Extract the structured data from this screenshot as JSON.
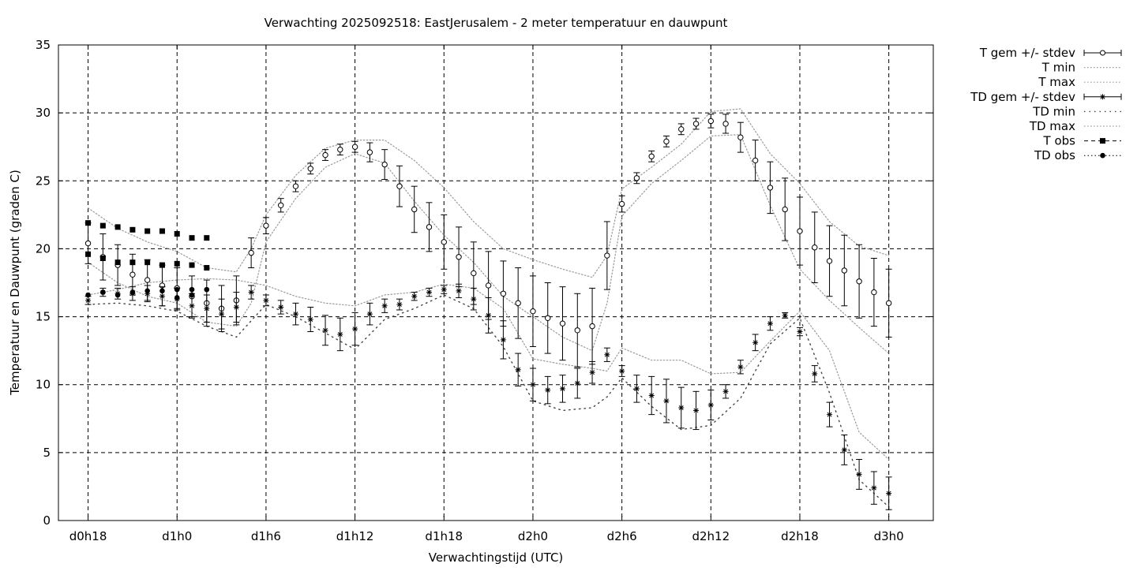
{
  "chart_data": {
    "type": "line",
    "title": "Verwachting 2025092518: EastJerusalem - 2 meter temperatuur en dauwpunt",
    "xlabel": "Verwachtingstijd (UTC)",
    "ylabel": "Temperatuur en Dauwpunt (graden C)",
    "x_unit": "hours from d0h0",
    "xlim": [
      16,
      75
    ],
    "ylim": [
      0,
      35
    ],
    "grid": true,
    "legend_position": "outside-top-right",
    "x_ticks": [
      {
        "x": 18,
        "label": "d0h18"
      },
      {
        "x": 24,
        "label": "d1h0"
      },
      {
        "x": 30,
        "label": "d1h6"
      },
      {
        "x": 36,
        "label": "d1h12"
      },
      {
        "x": 42,
        "label": "d1h18"
      },
      {
        "x": 48,
        "label": "d2h0"
      },
      {
        "x": 54,
        "label": "d2h6"
      },
      {
        "x": 60,
        "label": "d2h12"
      },
      {
        "x": 66,
        "label": "d2h18"
      },
      {
        "x": 72,
        "label": "d3h0"
      }
    ],
    "y_ticks": [
      0,
      5,
      10,
      15,
      20,
      25,
      30,
      35
    ],
    "series": [
      {
        "name": "T gem +/- stdev",
        "style": "circle-errorbar",
        "x": [
          18,
          19,
          20,
          21,
          22,
          23,
          24,
          25,
          26,
          27,
          28,
          29,
          30,
          31,
          32,
          33,
          34,
          35,
          36,
          37,
          38,
          39,
          40,
          41,
          42,
          43,
          44,
          45,
          46,
          47,
          48,
          49,
          50,
          51,
          52,
          53,
          54,
          55,
          56,
          57,
          58,
          59,
          60,
          61,
          62,
          63,
          64,
          65,
          66,
          67,
          68,
          69,
          70,
          71,
          72
        ],
        "mean": [
          20.4,
          19.4,
          18.8,
          18.1,
          17.7,
          17.3,
          17.1,
          16.5,
          16.0,
          15.6,
          16.2,
          19.7,
          21.7,
          23.2,
          24.6,
          25.9,
          26.9,
          27.3,
          27.5,
          27.1,
          26.2,
          24.6,
          22.9,
          21.6,
          20.5,
          19.4,
          18.2,
          17.3,
          16.7,
          16.0,
          15.4,
          14.9,
          14.5,
          14.0,
          14.3,
          19.5,
          23.3,
          25.2,
          26.8,
          27.9,
          28.8,
          29.2,
          29.4,
          29.2,
          28.2,
          26.5,
          24.5,
          22.9,
          21.3,
          20.1,
          19.1,
          18.4,
          17.6,
          16.8,
          16.0
        ],
        "stdev": [
          1.5,
          1.7,
          1.5,
          1.5,
          1.5,
          1.5,
          1.5,
          1.5,
          1.7,
          1.7,
          1.8,
          1.1,
          0.6,
          0.5,
          0.4,
          0.4,
          0.4,
          0.4,
          0.4,
          0.7,
          1.1,
          1.5,
          1.7,
          1.8,
          2.0,
          2.2,
          2.3,
          2.5,
          2.4,
          2.6,
          2.6,
          2.6,
          2.7,
          2.7,
          2.8,
          2.5,
          0.6,
          0.4,
          0.4,
          0.4,
          0.4,
          0.4,
          0.5,
          0.7,
          1.1,
          1.5,
          1.9,
          2.3,
          2.5,
          2.6,
          2.6,
          2.6,
          2.7,
          2.5,
          2.5
        ]
      },
      {
        "name": "T min",
        "style": "dotted",
        "x": [
          18,
          20,
          22,
          24,
          26,
          28,
          29,
          30,
          32,
          34,
          36,
          38,
          40,
          42,
          44,
          46,
          48,
          50,
          52,
          53,
          54,
          56,
          58,
          60,
          62,
          64,
          66,
          68,
          70,
          72
        ],
        "y": [
          19.0,
          17.5,
          16.5,
          16.0,
          14.6,
          14.3,
          16.0,
          20.5,
          23.7,
          26.0,
          27.0,
          26.3,
          23.5,
          21.0,
          19.0,
          16.5,
          15.0,
          13.5,
          12.5,
          16.0,
          22.4,
          24.8,
          26.5,
          28.3,
          28.4,
          23.2,
          18.5,
          16.2,
          14.2,
          12.3
        ]
      },
      {
        "name": "T max",
        "style": "dotted",
        "x": [
          18,
          20,
          22,
          24,
          26,
          28,
          29,
          30,
          32,
          34,
          36,
          38,
          40,
          42,
          44,
          46,
          48,
          50,
          52,
          53,
          54,
          56,
          58,
          60,
          62,
          64,
          66,
          68,
          70,
          72
        ],
        "y": [
          23.0,
          21.5,
          20.5,
          19.8,
          18.6,
          18.3,
          20.0,
          22.5,
          25.4,
          27.4,
          28.0,
          28.0,
          26.5,
          24.5,
          22.0,
          20.0,
          19.2,
          18.5,
          17.9,
          19.5,
          24.4,
          26.0,
          27.7,
          30.1,
          30.3,
          27.0,
          24.8,
          22.0,
          20.2,
          19.5
        ]
      },
      {
        "name": "TD gem +/- stdev",
        "style": "star-errorbar",
        "x": [
          18,
          19,
          20,
          21,
          22,
          23,
          24,
          25,
          26,
          27,
          28,
          29,
          30,
          31,
          32,
          33,
          34,
          35,
          36,
          37,
          38,
          39,
          40,
          41,
          42,
          43,
          44,
          45,
          46,
          47,
          48,
          49,
          50,
          51,
          52,
          53,
          54,
          55,
          56,
          57,
          58,
          59,
          60,
          61,
          62,
          63,
          64,
          65,
          66,
          67,
          68,
          69,
          70,
          71,
          72
        ],
        "mean": [
          16.2,
          16.8,
          16.7,
          16.7,
          16.7,
          16.5,
          16.3,
          15.8,
          15.6,
          15.2,
          15.7,
          16.8,
          16.2,
          15.7,
          15.2,
          14.8,
          14.0,
          13.7,
          14.1,
          15.2,
          15.8,
          15.9,
          16.5,
          16.8,
          17.0,
          16.9,
          16.3,
          15.1,
          13.3,
          11.1,
          10.0,
          9.6,
          9.7,
          10.1,
          10.9,
          12.2,
          11.0,
          9.7,
          9.2,
          8.8,
          8.3,
          8.1,
          8.5,
          9.5,
          11.3,
          13.1,
          14.5,
          15.1,
          13.9,
          10.8,
          7.8,
          5.2,
          3.4,
          2.4,
          2.0
        ],
        "stdev": [
          0.3,
          0.3,
          0.4,
          0.5,
          0.6,
          0.7,
          0.8,
          0.9,
          1.0,
          1.1,
          1.1,
          0.5,
          0.4,
          0.5,
          0.8,
          0.9,
          1.1,
          1.2,
          1.2,
          0.8,
          0.5,
          0.4,
          0.3,
          0.3,
          0.3,
          0.5,
          0.8,
          1.3,
          1.4,
          1.2,
          1.2,
          1.0,
          1.0,
          1.1,
          0.8,
          0.5,
          0.4,
          1.0,
          1.4,
          1.6,
          1.5,
          1.4,
          1.1,
          0.5,
          0.5,
          0.6,
          0.5,
          0.2,
          0.3,
          0.6,
          0.9,
          1.1,
          1.1,
          1.2,
          1.2
        ]
      },
      {
        "name": "TD min",
        "style": "sparse-dotted",
        "x": [
          18,
          20,
          22,
          24,
          26,
          28,
          30,
          32,
          34,
          36,
          38,
          40,
          42,
          44,
          46,
          48,
          50,
          52,
          53,
          54,
          56,
          58,
          60,
          62,
          64,
          66,
          68,
          70,
          72
        ],
        "y": [
          15.9,
          16.0,
          15.8,
          15.4,
          14.3,
          13.5,
          15.9,
          15.0,
          13.8,
          12.6,
          14.8,
          15.6,
          16.6,
          15.6,
          12.8,
          8.8,
          8.1,
          8.3,
          9.1,
          10.5,
          8.4,
          6.7,
          7.0,
          9.0,
          13.0,
          14.9,
          9.4,
          3.0,
          1.0
        ]
      },
      {
        "name": "TD max",
        "style": "dotted",
        "x": [
          18,
          20,
          22,
          24,
          26,
          28,
          30,
          32,
          34,
          36,
          38,
          40,
          42,
          44,
          46,
          48,
          50,
          52,
          53,
          54,
          56,
          58,
          60,
          62,
          64,
          66,
          68,
          70,
          72
        ],
        "y": [
          16.6,
          17.0,
          17.5,
          17.7,
          17.8,
          17.7,
          17.3,
          16.5,
          16.0,
          15.8,
          16.6,
          16.8,
          17.4,
          17.1,
          15.6,
          11.9,
          11.5,
          11.2,
          11.0,
          12.7,
          11.8,
          11.8,
          10.8,
          10.9,
          13.2,
          15.4,
          12.5,
          6.5,
          4.5
        ]
      },
      {
        "name": "T obs",
        "style": "square",
        "points": [
          [
            18,
            21.9
          ],
          [
            19,
            21.7
          ],
          [
            20,
            21.6
          ],
          [
            21,
            21.4
          ],
          [
            22,
            21.3
          ],
          [
            23,
            21.3
          ],
          [
            24,
            21.1
          ],
          [
            25,
            20.8
          ],
          [
            26,
            20.8
          ],
          [
            18,
            19.6
          ],
          [
            19,
            19.3
          ],
          [
            20,
            19.0
          ],
          [
            21,
            19.0
          ],
          [
            22,
            19.0
          ],
          [
            23,
            18.8
          ],
          [
            24,
            18.9
          ],
          [
            25,
            18.8
          ],
          [
            26,
            18.6
          ]
        ]
      },
      {
        "name": "TD obs",
        "style": "dot",
        "points": [
          [
            18,
            16.6
          ],
          [
            19,
            16.8
          ],
          [
            20,
            16.6
          ],
          [
            21,
            16.8
          ],
          [
            22,
            16.9
          ],
          [
            23,
            16.9
          ],
          [
            24,
            17.0
          ],
          [
            25,
            17.0
          ],
          [
            26,
            17.0
          ],
          [
            24,
            16.4
          ],
          [
            25,
            16.6
          ]
        ]
      }
    ]
  }
}
